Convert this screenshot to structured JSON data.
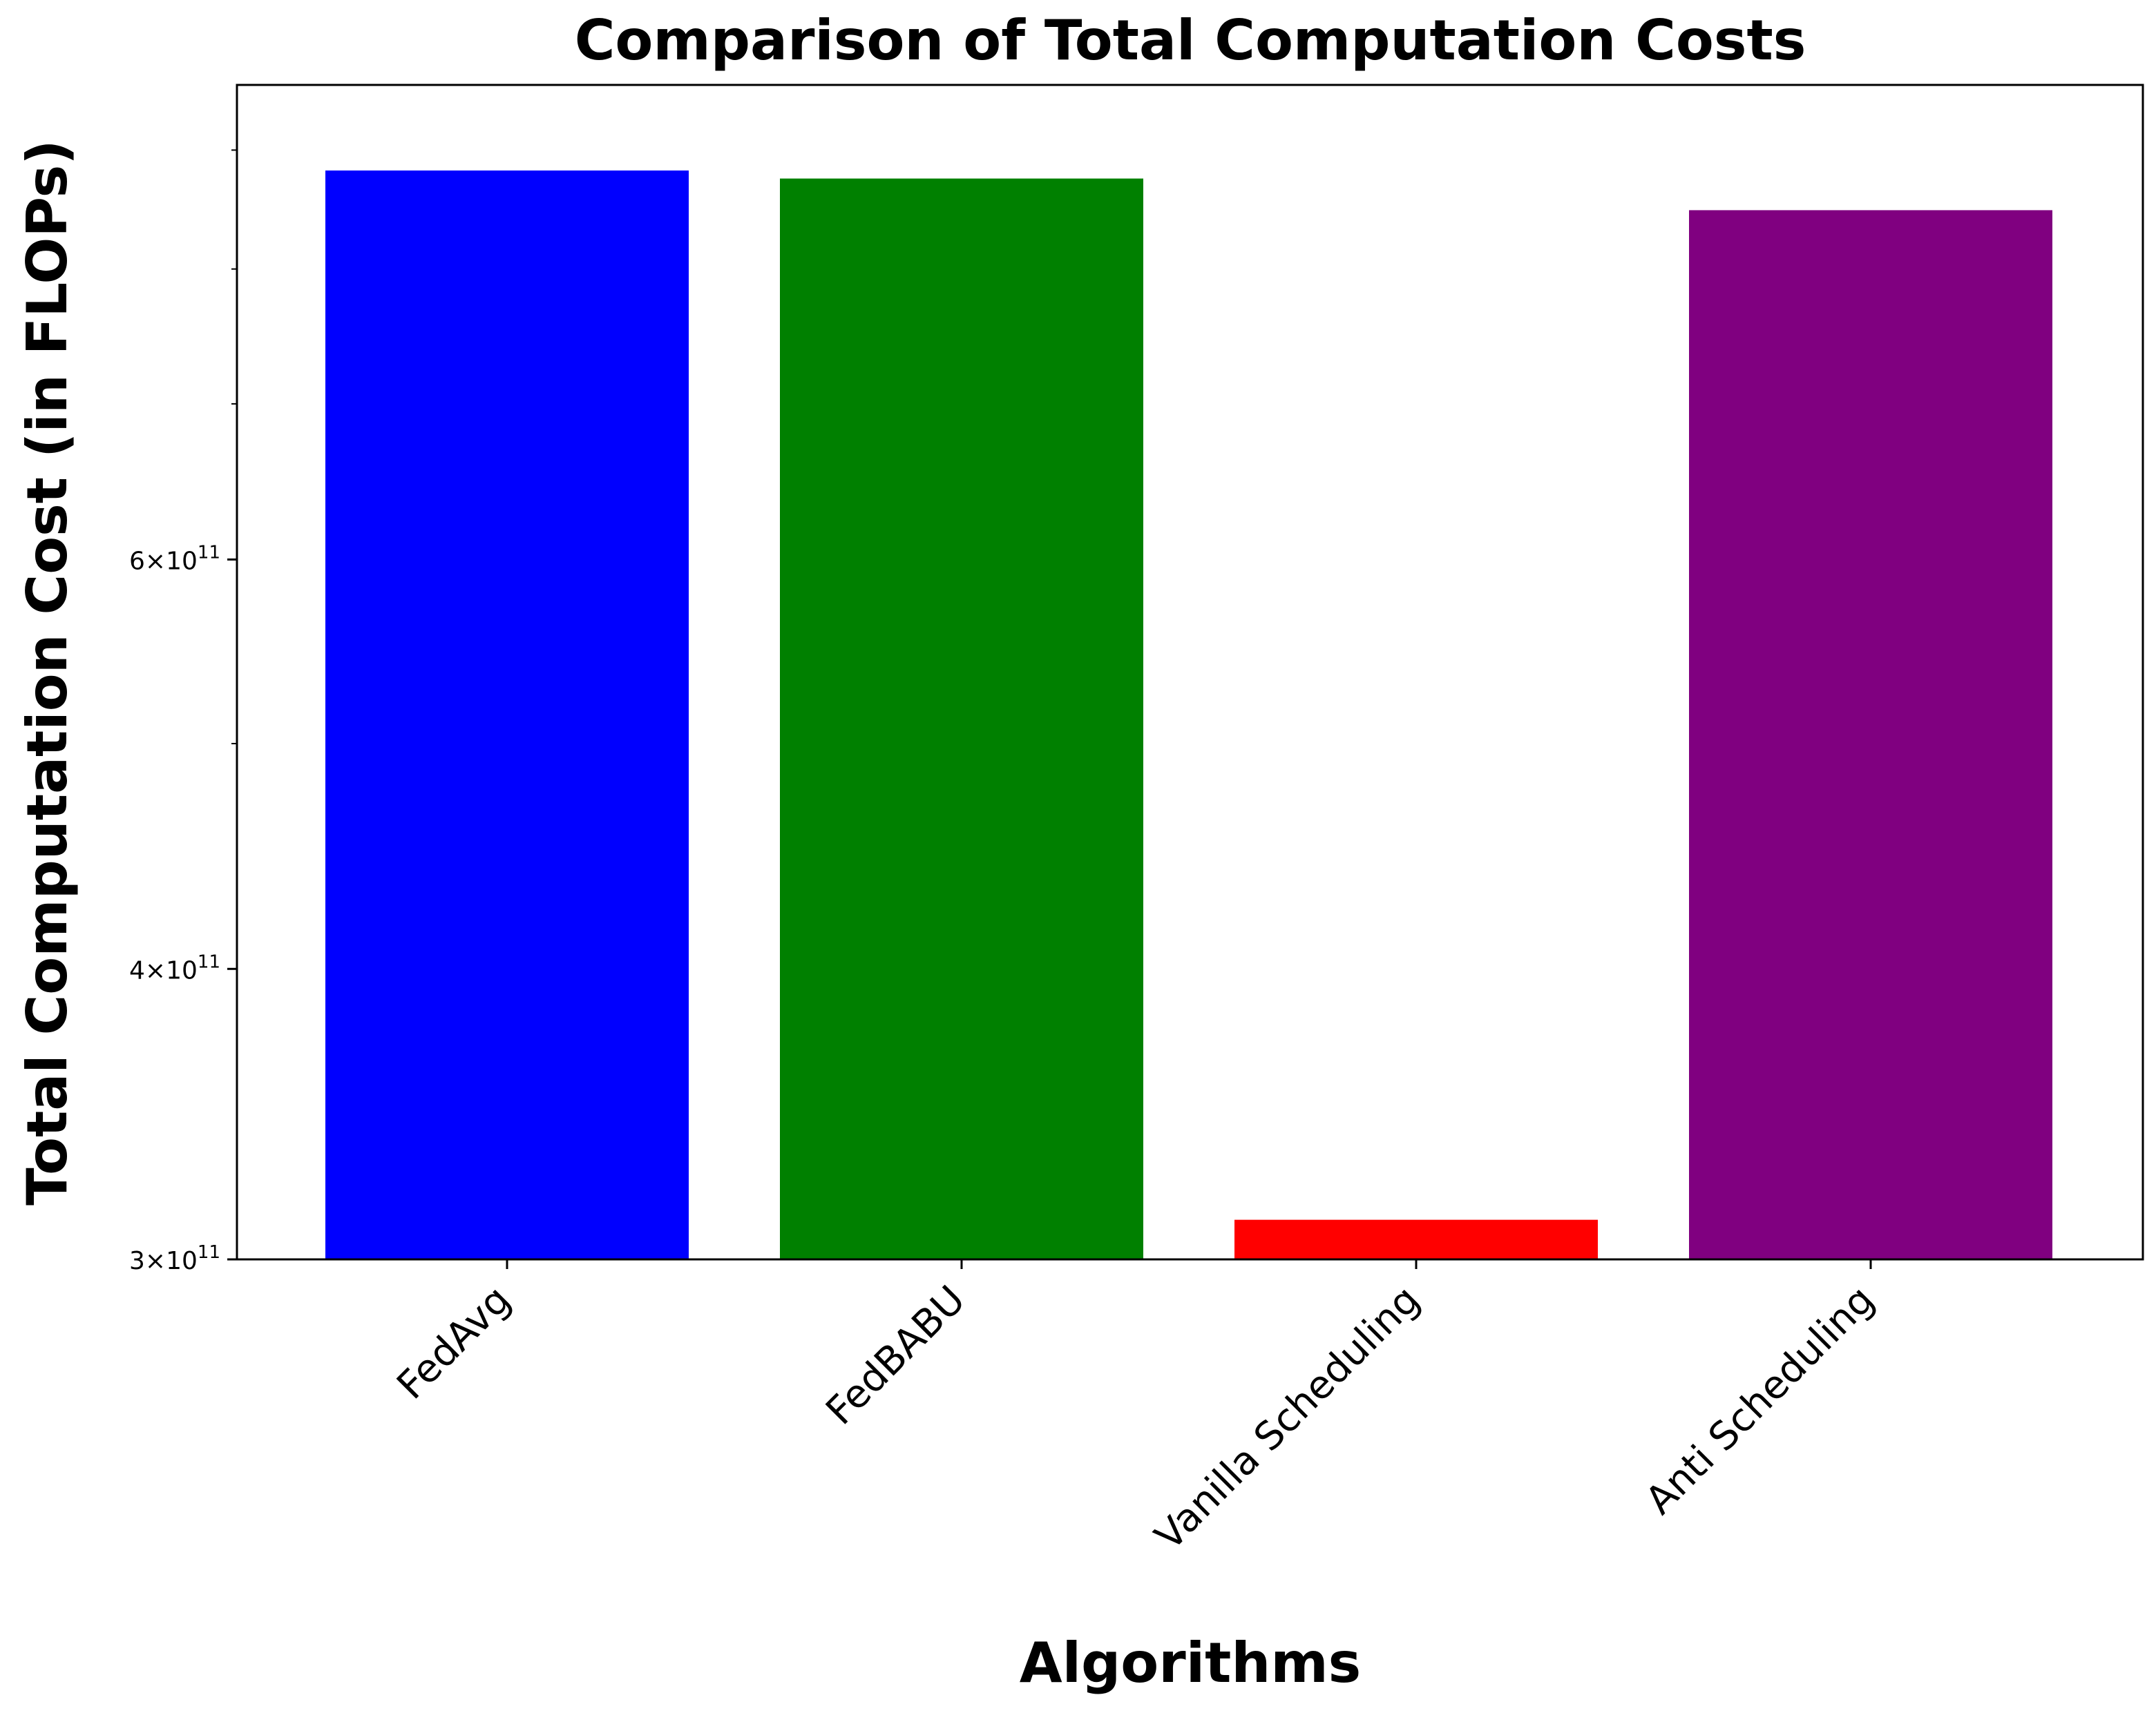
{
  "chart_data": {
    "type": "bar",
    "title": "Comparison of Total Computation Costs",
    "xlabel": "Algorithms",
    "ylabel": "Total Computation Cost (in FLOPs)",
    "y_scale": "log",
    "ylim": [
      300000000000,
      960000000000
    ],
    "categories": [
      "FedAvg",
      "FedBABU",
      "Vanilla Scheduling",
      "Anti Scheduling"
    ],
    "values": [
      882000000000,
      875000000000,
      312000000000,
      848000000000
    ],
    "colors": [
      "#0000ff",
      "#008000",
      "#ff0000",
      "#800080"
    ],
    "y_major_ticks": [
      {
        "value": 300000000000,
        "mantissa": "3",
        "base": "10",
        "exponent": "11"
      },
      {
        "value": 400000000000,
        "mantissa": "4",
        "base": "10",
        "exponent": "11"
      },
      {
        "value": 600000000000,
        "mantissa": "6",
        "base": "10",
        "exponent": "11"
      }
    ],
    "y_minor_ticks": [
      500000000000,
      700000000000,
      800000000000,
      900000000000
    ],
    "grid": false,
    "legend": "none"
  }
}
